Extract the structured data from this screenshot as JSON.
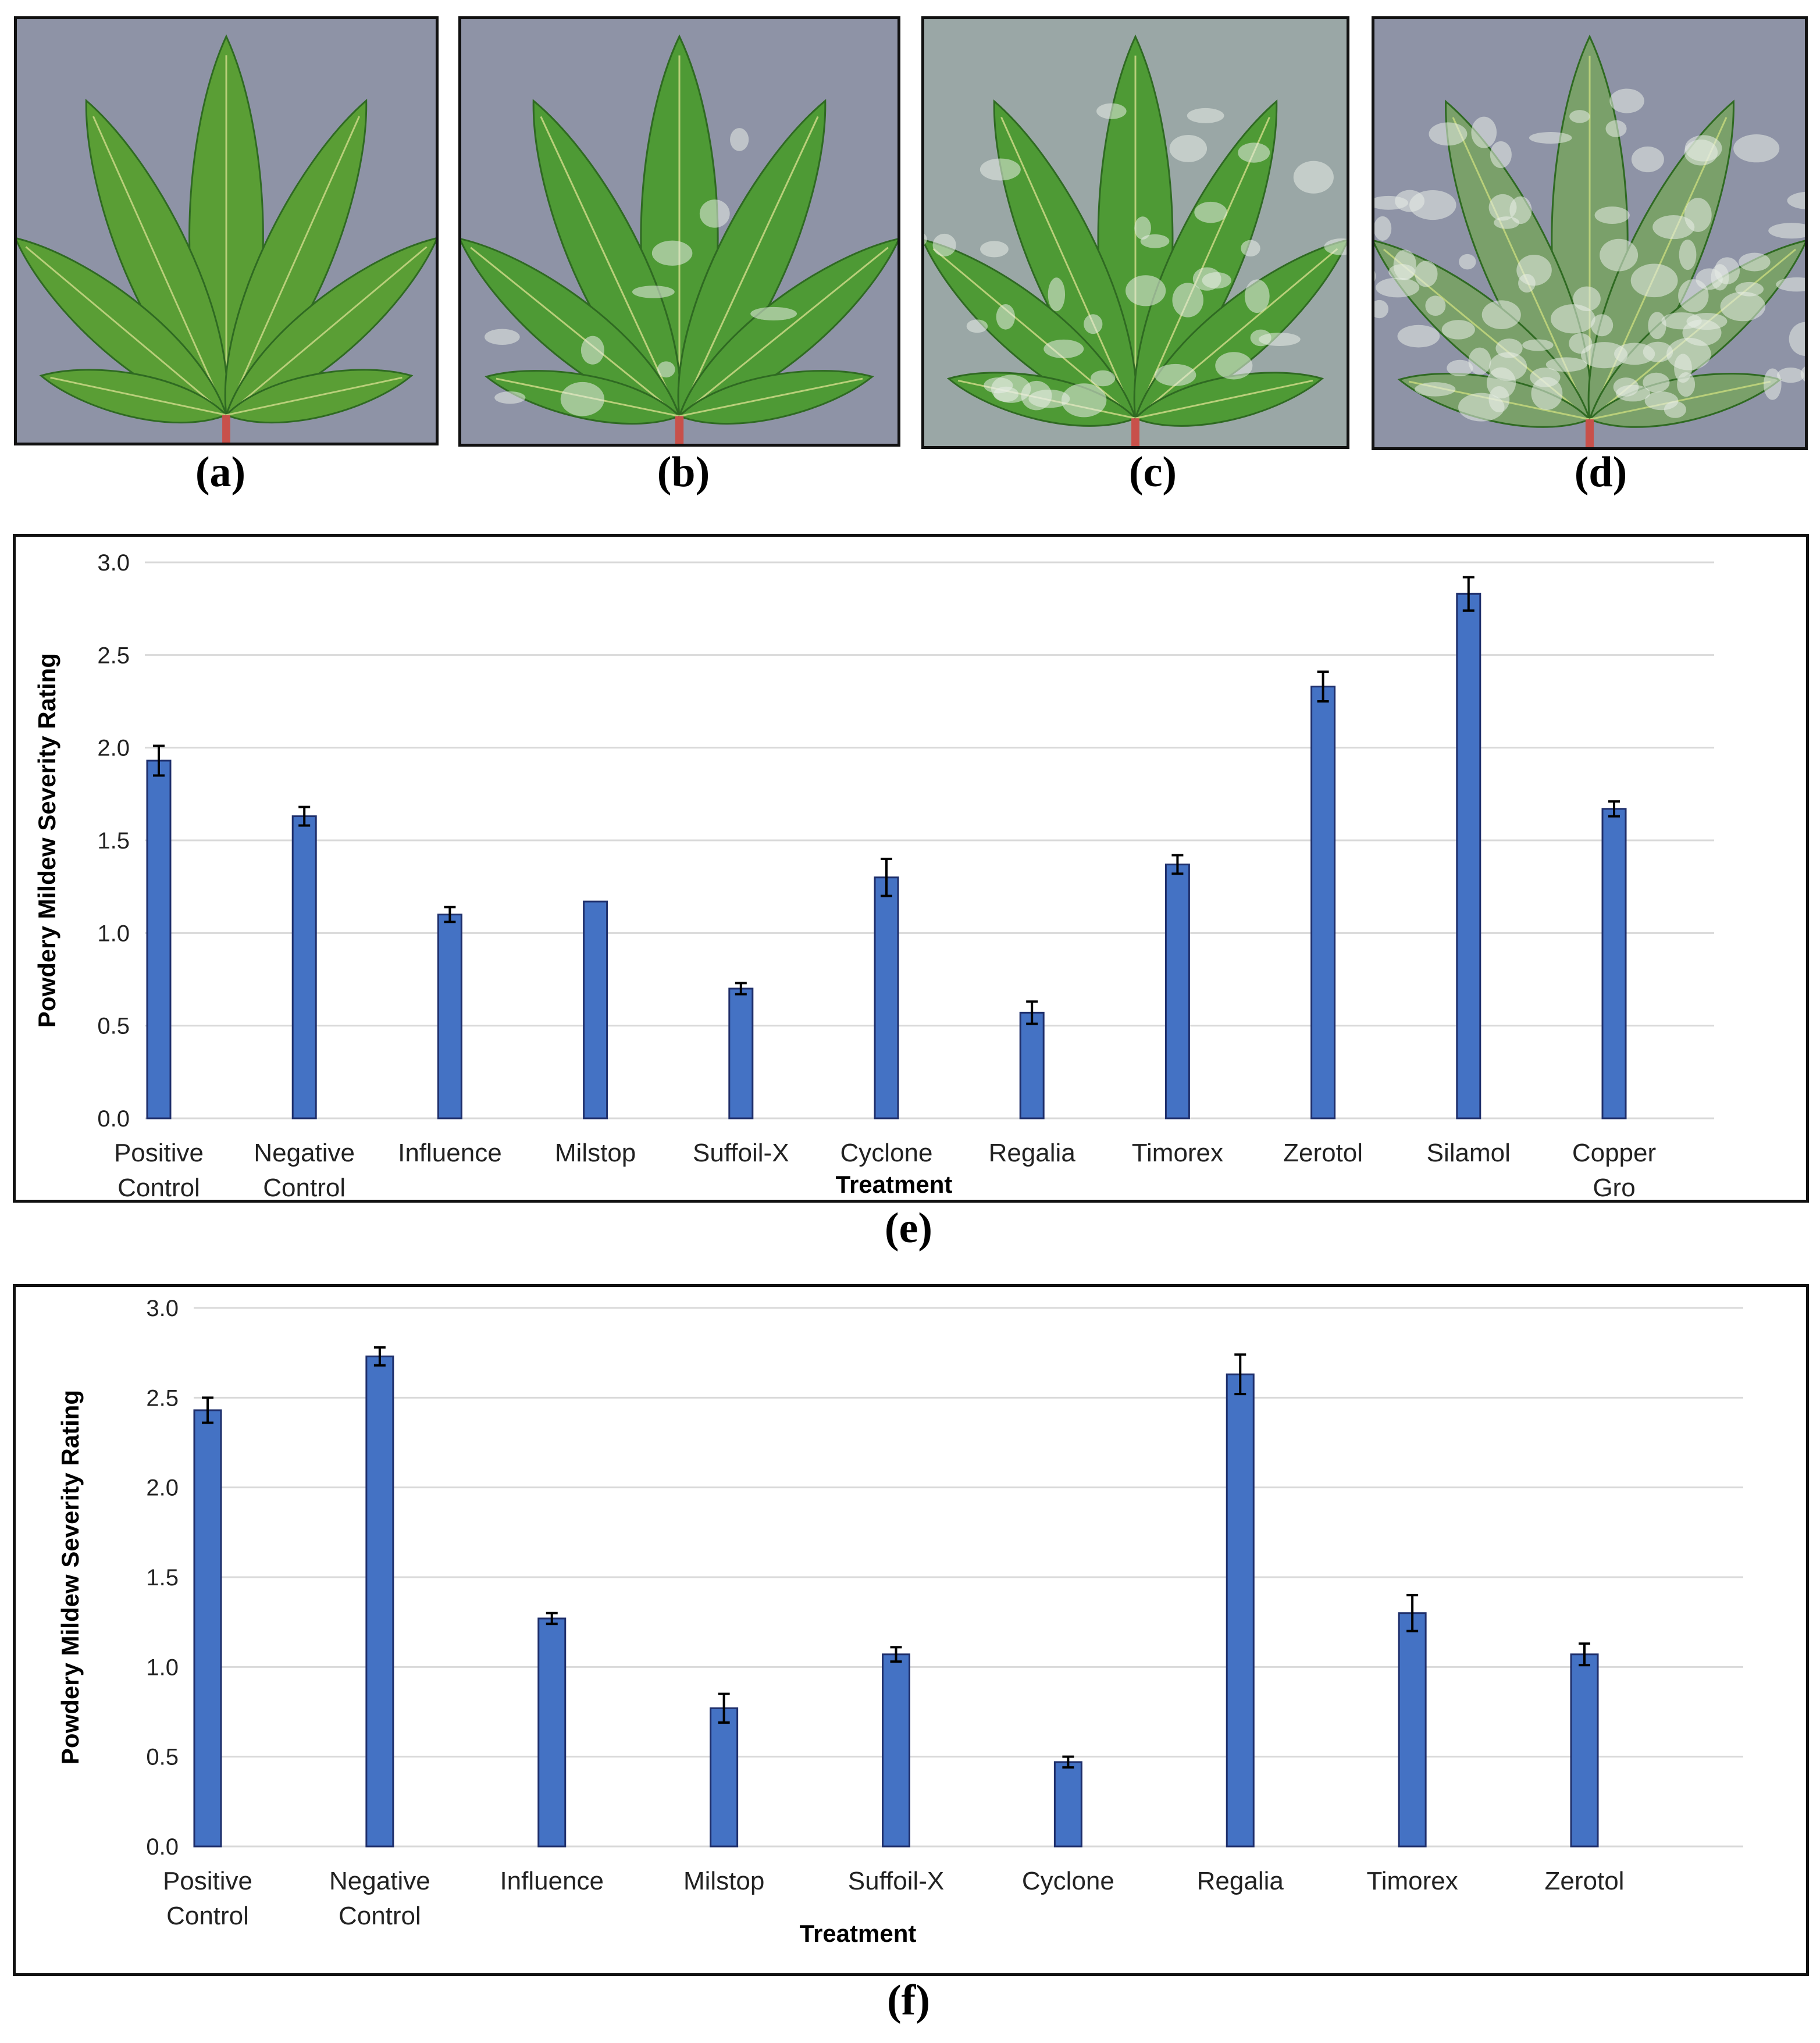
{
  "photos": [
    {
      "caption": "(a)",
      "severity": "healthy"
    },
    {
      "caption": "(b)",
      "severity": "light"
    },
    {
      "caption": "(c)",
      "severity": "moderate"
    },
    {
      "caption": "(d)",
      "severity": "severe"
    }
  ],
  "colors": {
    "bar": "#4472c4",
    "bar_edge": "#1f2f6b",
    "grid": "#d9d9d9",
    "leaf": "#4e9a35",
    "mildew": "#e8ece6",
    "stem": "#c8504a"
  },
  "chart_data": [
    {
      "type": "bar",
      "caption": "(e)",
      "title": "",
      "xlabel": "Treatment",
      "ylabel": "Powdery Mildew Severity Rating",
      "ylim": [
        0,
        3
      ],
      "yticks": [
        "0.0",
        "0.5",
        "1.0",
        "1.5",
        "2.0",
        "2.5",
        "3.0"
      ],
      "grid": true,
      "categories": [
        [
          "Positive",
          "Control"
        ],
        [
          "Negative",
          "Control"
        ],
        [
          "Influence"
        ],
        [
          "Milstop"
        ],
        [
          "Suffoil-X"
        ],
        [
          "Cyclone"
        ],
        [
          "Regalia"
        ],
        [
          "Timorex"
        ],
        [
          "Zerotol"
        ],
        [
          "Silamol"
        ],
        [
          "Copper",
          "Gro"
        ]
      ],
      "values": [
        1.93,
        1.63,
        1.1,
        1.17,
        0.7,
        1.3,
        0.57,
        1.37,
        2.33,
        2.83,
        1.67
      ],
      "errors": [
        0.08,
        0.05,
        0.04,
        0.0,
        0.03,
        0.1,
        0.06,
        0.05,
        0.08,
        0.09,
        0.04
      ]
    },
    {
      "type": "bar",
      "caption": "(f)",
      "title": "",
      "xlabel": "Treatment",
      "ylabel": "Powdery Mildew Severity Rating",
      "ylim": [
        0,
        3
      ],
      "yticks": [
        "0.0",
        "0.5",
        "1.0",
        "1.5",
        "2.0",
        "2.5",
        "3.0"
      ],
      "grid": true,
      "categories": [
        [
          "Positive",
          "Control"
        ],
        [
          "Negative",
          "Control"
        ],
        [
          "Influence"
        ],
        [
          "Milstop"
        ],
        [
          "Suffoil-X"
        ],
        [
          "Cyclone"
        ],
        [
          "Regalia"
        ],
        [
          "Timorex"
        ],
        [
          "Zerotol"
        ]
      ],
      "values": [
        2.43,
        2.73,
        1.27,
        0.77,
        1.07,
        0.47,
        2.63,
        1.3,
        1.07
      ],
      "errors": [
        0.07,
        0.05,
        0.03,
        0.08,
        0.04,
        0.03,
        0.11,
        0.1,
        0.06
      ]
    }
  ]
}
